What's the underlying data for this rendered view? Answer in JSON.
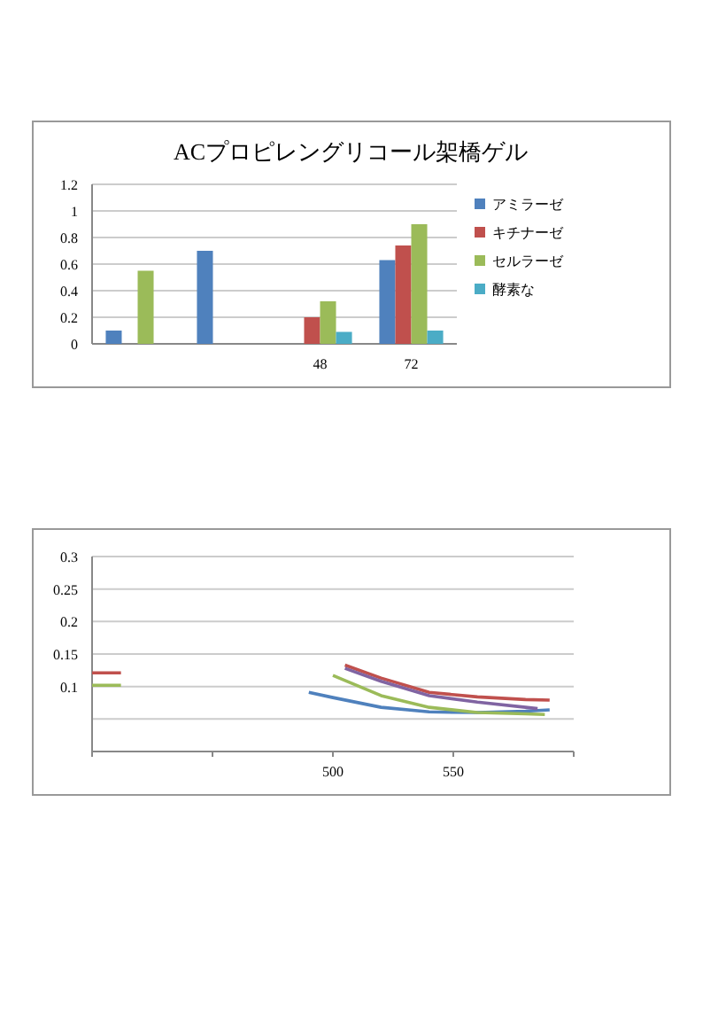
{
  "chart_data": [
    {
      "type": "bar",
      "title": "ACプロピレングリコール架橋ゲル",
      "categories": [
        null,
        null,
        "48",
        "72"
      ],
      "series": [
        {
          "name": "アミラーゼ",
          "color": "#4f81bd",
          "values": [
            0.1,
            0.7,
            null,
            0.63
          ]
        },
        {
          "name": "キチナーゼ",
          "color": "#c0504d",
          "values": [
            null,
            null,
            0.2,
            0.74
          ]
        },
        {
          "name": "セルラーゼ",
          "color": "#9bbb59",
          "values": [
            0.55,
            null,
            0.32,
            0.9
          ]
        },
        {
          "name": "酵素な",
          "color": "#4bacc6",
          "values": [
            null,
            null,
            0.09,
            0.1
          ]
        }
      ],
      "ylim": [
        0,
        1.2
      ],
      "yticks": [
        0,
        0.2,
        0.4,
        0.6,
        0.8,
        1,
        1.2
      ],
      "grid": "y",
      "legend": "right"
    },
    {
      "type": "line",
      "series": [
        {
          "color": "#4f81bd",
          "x": [
            490,
            500,
            520,
            540,
            560,
            580,
            590
          ],
          "values": [
            0.091,
            0.083,
            0.068,
            0.061,
            0.06,
            0.062,
            0.064
          ]
        },
        {
          "color": "#c0504d",
          "x": [
            400,
            412,
            420,
            505,
            520,
            540,
            560,
            580,
            590
          ],
          "values": [
            0.121,
            0.121,
            null,
            0.133,
            0.113,
            0.091,
            0.084,
            0.08,
            0.079
          ]
        },
        {
          "color": "#9bbb59",
          "x": [
            400,
            412,
            420,
            500,
            520,
            540,
            560,
            580,
            588
          ],
          "values": [
            0.102,
            0.102,
            null,
            0.117,
            0.086,
            0.068,
            0.06,
            0.058,
            0.057
          ]
        },
        {
          "color": "#8064a2",
          "x": [
            505,
            520,
            540,
            560,
            580,
            585
          ],
          "values": [
            0.128,
            0.108,
            0.086,
            0.076,
            0.068,
            0.066
          ]
        }
      ],
      "xlim": [
        400,
        600
      ],
      "xticks": [
        {
          "value": 400,
          "label": null
        },
        {
          "value": 450,
          "label": null
        },
        500,
        550,
        {
          "value": 600,
          "label": null
        }
      ],
      "ylim": [
        0,
        0.3
      ],
      "yticks": [
        {
          "value": 0,
          "label": null
        },
        {
          "value": 0.05,
          "label": null
        },
        0.1,
        0.15,
        0.2,
        0.25,
        0.3
      ],
      "grid": "y",
      "marker": "none",
      "line_style": "solid"
    }
  ]
}
